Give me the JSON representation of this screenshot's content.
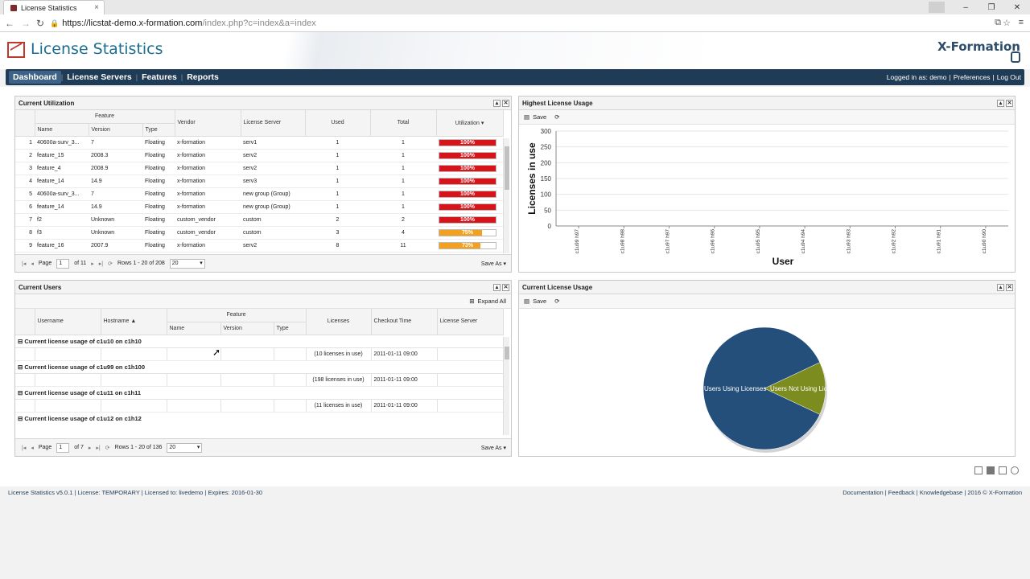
{
  "browser": {
    "tab_title": "License Statistics",
    "url_host": "https://licstat-demo.x-formation.com",
    "url_path": "/index.php?c=index&a=index"
  },
  "header": {
    "title": "License Statistics",
    "brand": "X-Formation"
  },
  "nav": {
    "items": [
      "Dashboard",
      "License Servers",
      "Features",
      "Reports"
    ],
    "active": "Dashboard",
    "logged_in": "Logged in as: demo",
    "preferences": "Preferences",
    "logout": "Log Out"
  },
  "current_utilization": {
    "title": "Current Utilization",
    "headers": {
      "feature": "Feature",
      "name": "Name",
      "version": "Version",
      "type": "Type",
      "vendor": "Vendor",
      "license_server": "License Server",
      "used": "Used",
      "total": "Total",
      "utilization": "Utilization"
    },
    "rows": [
      {
        "n": "1",
        "name": "40600a-surv_3...",
        "version": "7",
        "type": "Floating",
        "vendor": "x-formation",
        "server": "serv1",
        "used": "1",
        "total": "1",
        "util": "100%",
        "pct": 100
      },
      {
        "n": "2",
        "name": "feature_15",
        "version": "2008.3",
        "type": "Floating",
        "vendor": "x-formation",
        "server": "serv2",
        "used": "1",
        "total": "1",
        "util": "100%",
        "pct": 100
      },
      {
        "n": "3",
        "name": "feature_4",
        "version": "2008.9",
        "type": "Floating",
        "vendor": "x-formation",
        "server": "serv2",
        "used": "1",
        "total": "1",
        "util": "100%",
        "pct": 100
      },
      {
        "n": "4",
        "name": "feature_14",
        "version": "14.9",
        "type": "Floating",
        "vendor": "x-formation",
        "server": "serv3",
        "used": "1",
        "total": "1",
        "util": "100%",
        "pct": 100
      },
      {
        "n": "5",
        "name": "40600a-surv_3...",
        "version": "7",
        "type": "Floating",
        "vendor": "x-formation",
        "server": "new group (Group)",
        "used": "1",
        "total": "1",
        "util": "100%",
        "pct": 100
      },
      {
        "n": "6",
        "name": "feature_14",
        "version": "14.9",
        "type": "Floating",
        "vendor": "x-formation",
        "server": "new group (Group)",
        "used": "1",
        "total": "1",
        "util": "100%",
        "pct": 100
      },
      {
        "n": "7",
        "name": "f2",
        "version": "Unknown",
        "type": "Floating",
        "vendor": "custom_vendor",
        "server": "custom",
        "used": "2",
        "total": "2",
        "util": "100%",
        "pct": 100
      },
      {
        "n": "8",
        "name": "f3",
        "version": "Unknown",
        "type": "Floating",
        "vendor": "custom_vendor",
        "server": "custom",
        "used": "3",
        "total": "4",
        "util": "75%",
        "pct": 75
      },
      {
        "n": "9",
        "name": "feature_16",
        "version": "2007.9",
        "type": "Floating",
        "vendor": "x-formation",
        "server": "serv2",
        "used": "8",
        "total": "11",
        "util": "73%",
        "pct": 73
      }
    ],
    "pager": {
      "page_label": "Page",
      "page": "1",
      "of": "of 11",
      "rows": "Rows 1 - 20 of 208",
      "per_page": "20",
      "save_as": "Save As"
    }
  },
  "current_users": {
    "title": "Current Users",
    "expand_all": "Expand All",
    "headers": {
      "username": "Username",
      "hostname": "Hostname ▲",
      "feature": "Feature",
      "name": "Name",
      "version": "Version",
      "type": "Type",
      "licenses": "Licenses",
      "checkout": "Checkout Time",
      "license_server": "License Server"
    },
    "groups": [
      {
        "label": "Current license usage of c1u10 on c1h10",
        "licenses": "(10 licenses in use)",
        "checkout": "2011-01-11 09:00"
      },
      {
        "label": "Current license usage of c1u99 on c1h100",
        "licenses": "(198 licenses in use)",
        "checkout": "2011-01-11 09:00"
      },
      {
        "label": "Current license usage of c1u11 on c1h11",
        "licenses": "(11 licenses in use)",
        "checkout": "2011-01-11 09:00"
      },
      {
        "label": "Current license usage of c1u12 on c1h12",
        "licenses": "",
        "checkout": ""
      }
    ],
    "pager": {
      "page_label": "Page",
      "page": "1",
      "of": "of 7",
      "rows": "Rows 1 - 20 of 136",
      "per_page": "20",
      "save_as": "Save As"
    }
  },
  "highest_usage": {
    "title": "Highest License Usage",
    "save": "Save"
  },
  "current_usage": {
    "title": "Current License Usage",
    "save": "Save"
  },
  "chart_data": [
    {
      "type": "bar",
      "title": "",
      "xlabel": "User",
      "ylabel": "Licenses in use",
      "ylim": [
        0,
        300
      ],
      "yticks": [
        0,
        50,
        100,
        150,
        200,
        250,
        300
      ],
      "categories": [
        "c1u99 h97",
        "c1u98 h98",
        "c1u97 h97",
        "c1u96 h96",
        "c1u95 h95",
        "c1u94 h94",
        "c1u93 h93",
        "c1u92 h92",
        "c1u91 h91",
        "c1u90 h90"
      ],
      "values": [
        0,
        0,
        0,
        0,
        0,
        0,
        0,
        0,
        0,
        0
      ],
      "grid": true
    },
    {
      "type": "pie",
      "labels": [
        "Users Using Licenses",
        "Users Not Using Licenses"
      ],
      "values": [
        86,
        14
      ],
      "colors": [
        "#244f7a",
        "#7d8c1e"
      ]
    }
  ],
  "footer": {
    "left": "License Statistics v5.0.1 | License: TEMPORARY | Licensed to: livedemo | Expires: 2016-01-30",
    "documentation": "Documentation",
    "feedback": "Feedback",
    "knowledgebase": "Knowledgebase",
    "copyright": "2016 © X-Formation"
  }
}
